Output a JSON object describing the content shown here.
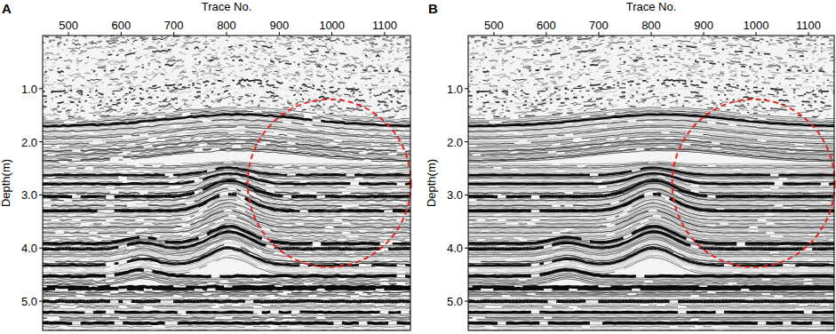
{
  "chart_data": [
    {
      "type": "seismic_section",
      "title": "A",
      "x_label": "Trace No.",
      "y_label": "Depth(m)",
      "xlim": [
        451,
        1149
      ],
      "ylim": [
        0,
        5.55
      ],
      "xticks": [
        500,
        600,
        700,
        800,
        900,
        1000,
        1100
      ],
      "yticks": [
        {
          "value": 1,
          "label": "1.0"
        },
        {
          "value": 2,
          "label": "2.0"
        },
        {
          "value": 3,
          "label": "3.0"
        },
        {
          "value": 4,
          "label": "4.0"
        },
        {
          "value": 5,
          "label": "5.0"
        }
      ],
      "annotations": [
        {
          "shape": "circle",
          "x": 995,
          "y": 2.78,
          "rx": 155,
          "ry": 1.58,
          "color": "#e8231f",
          "line_style": "dashed"
        }
      ]
    },
    {
      "type": "seismic_section",
      "title": "B",
      "x_label": "Trace No.",
      "y_label": "Depth(m)",
      "xlim": [
        451,
        1149
      ],
      "ylim": [
        0,
        5.55
      ],
      "xticks": [
        500,
        600,
        700,
        800,
        900,
        1000,
        1100
      ],
      "yticks": [
        {
          "value": 1,
          "label": "1.0"
        },
        {
          "value": 2,
          "label": "2.0"
        },
        {
          "value": 3,
          "label": "3.0"
        },
        {
          "value": 4,
          "label": "4.0"
        },
        {
          "value": 5,
          "label": "5.0"
        }
      ],
      "annotations": [
        {
          "shape": "circle",
          "x": 995,
          "y": 2.78,
          "rx": 155,
          "ry": 1.58,
          "color": "#e8231f",
          "line_style": "dashed"
        }
      ]
    }
  ]
}
